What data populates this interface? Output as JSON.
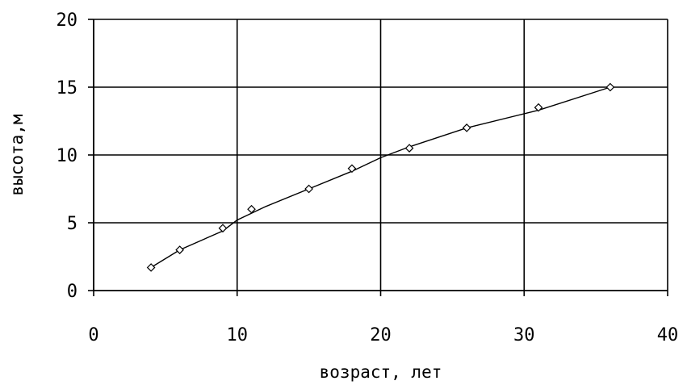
{
  "chart_data": {
    "type": "line",
    "title": "",
    "xlabel": "возраст, лет",
    "ylabel": "высота,м",
    "xlim": [
      0,
      40
    ],
    "ylim": [
      0,
      20
    ],
    "x_ticks": [
      0,
      10,
      20,
      30,
      40
    ],
    "y_ticks": [
      0,
      5,
      10,
      15,
      20
    ],
    "grid": true,
    "legend": "none",
    "marker": "diamond",
    "series": [
      {
        "x": [
          4,
          6,
          9,
          11,
          15,
          18,
          22,
          26,
          31,
          36
        ],
        "y": [
          1.7,
          3.0,
          4.6,
          6.0,
          7.5,
          9.0,
          10.5,
          12.0,
          13.5,
          15.0
        ],
        "trend_x": [
          4,
          6,
          9,
          10,
          12,
          15,
          18,
          20,
          22,
          26,
          31,
          36
        ],
        "trend_y": [
          1.7,
          3.0,
          4.4,
          5.2,
          6.2,
          7.5,
          8.8,
          9.8,
          10.6,
          12.0,
          13.3,
          15.0
        ]
      }
    ]
  }
}
